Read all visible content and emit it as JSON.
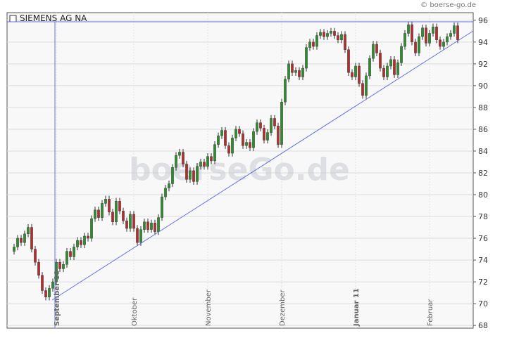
{
  "chart_data": {
    "type": "candlestick",
    "title": "SIEMENS AG NA",
    "watermark": "boerseGo.de",
    "copyright": "© boerse-go.de",
    "categories": [
      null,
      null,
      null,
      null,
      null,
      null,
      null,
      null,
      null,
      null,
      null,
      null,
      "September 10",
      null,
      null,
      null,
      null,
      null,
      null,
      null,
      null,
      null,
      null,
      null,
      null,
      null,
      null,
      null,
      null,
      null,
      null,
      null,
      null,
      null,
      "Oktober",
      null,
      null,
      null,
      null,
      null,
      null,
      null,
      null,
      null,
      null,
      null,
      null,
      null,
      null,
      null,
      null,
      null,
      null,
      null,
      null,
      "November",
      null,
      null,
      null,
      null,
      null,
      null,
      null,
      null,
      null,
      null,
      null,
      null,
      null,
      null,
      null,
      null,
      null,
      null,
      null,
      null,
      "Dezember",
      null,
      null,
      null,
      null,
      null,
      null,
      null,
      null,
      null,
      null,
      null,
      null,
      null,
      null,
      null,
      null,
      null,
      null,
      null,
      null,
      "Januar 11",
      null,
      null,
      null,
      null,
      null,
      null,
      null,
      null,
      null,
      null,
      null,
      null,
      null,
      null,
      null,
      null,
      null,
      null,
      null,
      null,
      "Februar",
      null,
      null,
      null,
      null,
      null,
      null,
      null,
      null
    ],
    "open": [
      74.8,
      75.2,
      76.0,
      75.6,
      76.4,
      77.0,
      75.0,
      73.8,
      72.6,
      71.2,
      70.6,
      71.4,
      72.0,
      73.8,
      73.2,
      73.6,
      74.8,
      74.3,
      75.2,
      75.8,
      75.4,
      76.2,
      76.0,
      77.8,
      78.6,
      77.9,
      79.2,
      79.6,
      78.4,
      77.5,
      79.4,
      78.5,
      77.6,
      76.9,
      78.2,
      76.9,
      75.6,
      76.8,
      77.5,
      76.8,
      77.4,
      76.6,
      77.9,
      79.8,
      80.6,
      81.0,
      82.5,
      83.6,
      83.9,
      82.8,
      81.4,
      82.2,
      81.2,
      82.6,
      83.0,
      82.6,
      83.5,
      83.1,
      84.6,
      85.4,
      85.9,
      84.5,
      83.8,
      85.2,
      86.0,
      85.6,
      84.5,
      84.8,
      84.3,
      85.8,
      86.6,
      86.1,
      85.0,
      85.7,
      87.0,
      86.3,
      84.6,
      88.5,
      90.6,
      92.0,
      91.2,
      91.4,
      90.8,
      91.6,
      93.5,
      94.0,
      93.6,
      94.6,
      94.9,
      94.5,
      94.8,
      95.0,
      94.6,
      94.2,
      94.7,
      93.3,
      91.2,
      90.8,
      91.8,
      90.2,
      89.1,
      90.9,
      92.5,
      93.8,
      93.0,
      91.6,
      90.8,
      91.8,
      92.4,
      91.0,
      92.1,
      93.6,
      94.8,
      95.6,
      94.0,
      93.0,
      94.5,
      95.3,
      93.9,
      94.8,
      95.4,
      94.2,
      93.6,
      94.0,
      94.5,
      94.8,
      95.5
    ],
    "high": [
      75.5,
      76.3,
      76.3,
      76.7,
      77.3,
      77.3,
      75.3,
      74.1,
      72.9,
      71.5,
      71.7,
      72.3,
      74.1,
      74.1,
      73.9,
      75.1,
      75.1,
      75.5,
      76.1,
      76.1,
      76.5,
      76.5,
      78.1,
      78.9,
      78.9,
      79.5,
      79.9,
      79.9,
      78.7,
      79.7,
      79.7,
      78.8,
      77.9,
      78.5,
      78.5,
      77.2,
      77.1,
      77.8,
      77.8,
      77.7,
      77.7,
      78.2,
      80.1,
      80.9,
      81.3,
      82.8,
      83.9,
      84.2,
      84.2,
      83.1,
      82.5,
      82.5,
      82.9,
      83.3,
      83.3,
      83.8,
      83.8,
      84.9,
      85.7,
      86.2,
      86.2,
      84.8,
      85.5,
      86.3,
      86.3,
      85.9,
      85.1,
      85.1,
      86.1,
      86.9,
      86.9,
      86.4,
      86.0,
      87.3,
      87.3,
      86.6,
      88.8,
      90.9,
      92.3,
      92.3,
      91.7,
      91.7,
      91.9,
      93.8,
      94.3,
      94.3,
      94.9,
      95.2,
      95.2,
      95.1,
      95.3,
      95.3,
      94.9,
      95.0,
      95.0,
      93.6,
      91.5,
      92.1,
      92.1,
      90.5,
      91.2,
      92.8,
      94.1,
      94.1,
      93.3,
      91.9,
      92.1,
      92.7,
      92.7,
      92.4,
      93.9,
      95.1,
      95.9,
      95.9,
      94.3,
      94.8,
      95.6,
      95.6,
      95.1,
      95.7,
      95.7,
      94.5,
      94.3,
      94.8,
      95.1,
      95.8,
      95.8
    ],
    "low": [
      74.5,
      74.9,
      75.3,
      75.3,
      76.1,
      74.7,
      73.5,
      72.3,
      70.9,
      70.3,
      70.3,
      71.1,
      71.7,
      72.9,
      72.9,
      73.3,
      74.0,
      74.0,
      74.9,
      75.1,
      75.1,
      75.7,
      75.7,
      77.5,
      77.6,
      77.6,
      78.9,
      78.1,
      77.2,
      77.2,
      78.2,
      77.3,
      76.6,
      76.6,
      76.6,
      75.3,
      75.3,
      76.5,
      76.5,
      76.5,
      76.3,
      76.3,
      77.6,
      79.5,
      80.3,
      80.7,
      82.2,
      83.3,
      82.5,
      81.1,
      81.1,
      80.9,
      80.9,
      82.3,
      82.3,
      82.3,
      82.8,
      82.8,
      84.3,
      85.1,
      84.2,
      83.5,
      83.5,
      84.9,
      85.3,
      84.2,
      84.2,
      84.0,
      84.0,
      85.5,
      85.8,
      84.7,
      84.7,
      85.4,
      86.0,
      84.3,
      84.3,
      88.2,
      90.3,
      90.9,
      90.9,
      90.5,
      90.5,
      91.3,
      93.2,
      93.3,
      93.3,
      94.3,
      94.2,
      94.2,
      94.5,
      94.3,
      93.9,
      93.9,
      93.0,
      90.9,
      90.5,
      90.5,
      89.9,
      88.8,
      88.8,
      90.6,
      92.2,
      92.7,
      91.3,
      90.5,
      90.5,
      91.5,
      90.7,
      90.7,
      91.8,
      93.3,
      94.5,
      93.7,
      92.7,
      92.7,
      94.2,
      93.6,
      93.6,
      94.5,
      93.9,
      93.3,
      93.3,
      93.7,
      94.2,
      94.5,
      93.9
    ],
    "close": [
      75.2,
      76.0,
      75.6,
      76.4,
      77.0,
      75.0,
      73.8,
      72.6,
      71.2,
      70.6,
      71.4,
      72.0,
      73.8,
      73.2,
      73.6,
      74.8,
      74.3,
      75.2,
      75.8,
      75.4,
      76.2,
      76.0,
      77.8,
      78.6,
      77.9,
      79.2,
      79.6,
      78.4,
      77.5,
      79.4,
      78.5,
      77.6,
      76.9,
      78.2,
      76.9,
      75.6,
      76.8,
      77.5,
      76.8,
      77.4,
      76.6,
      77.9,
      79.8,
      80.6,
      81.0,
      82.5,
      83.6,
      83.9,
      82.8,
      81.4,
      82.2,
      81.2,
      82.6,
      83.0,
      82.6,
      83.5,
      83.1,
      84.6,
      85.4,
      85.9,
      84.5,
      83.8,
      85.2,
      86.0,
      85.6,
      84.5,
      84.8,
      84.3,
      85.8,
      86.6,
      86.1,
      85.0,
      85.7,
      87.0,
      86.3,
      84.6,
      88.5,
      90.6,
      92.0,
      91.2,
      91.4,
      90.8,
      91.6,
      93.5,
      94.0,
      93.6,
      94.6,
      94.9,
      94.5,
      94.8,
      95.0,
      94.6,
      94.2,
      94.7,
      93.3,
      91.2,
      90.8,
      91.8,
      90.2,
      89.1,
      90.9,
      92.5,
      93.8,
      93.0,
      91.6,
      90.8,
      91.8,
      92.4,
      91.0,
      92.1,
      93.6,
      94.8,
      95.6,
      94.0,
      93.0,
      94.5,
      95.3,
      93.9,
      94.8,
      95.4,
      94.2,
      93.6,
      94.0,
      94.5,
      94.8,
      95.5,
      94.2
    ],
    "up_color": "#2e8b2e",
    "down_color": "#b22e2e",
    "ylim": [
      67.75,
      96.7
    ],
    "yticks": [
      68,
      70,
      72,
      74,
      76,
      78,
      80,
      82,
      84,
      86,
      88,
      90,
      92,
      94,
      96
    ],
    "grid": true
  }
}
